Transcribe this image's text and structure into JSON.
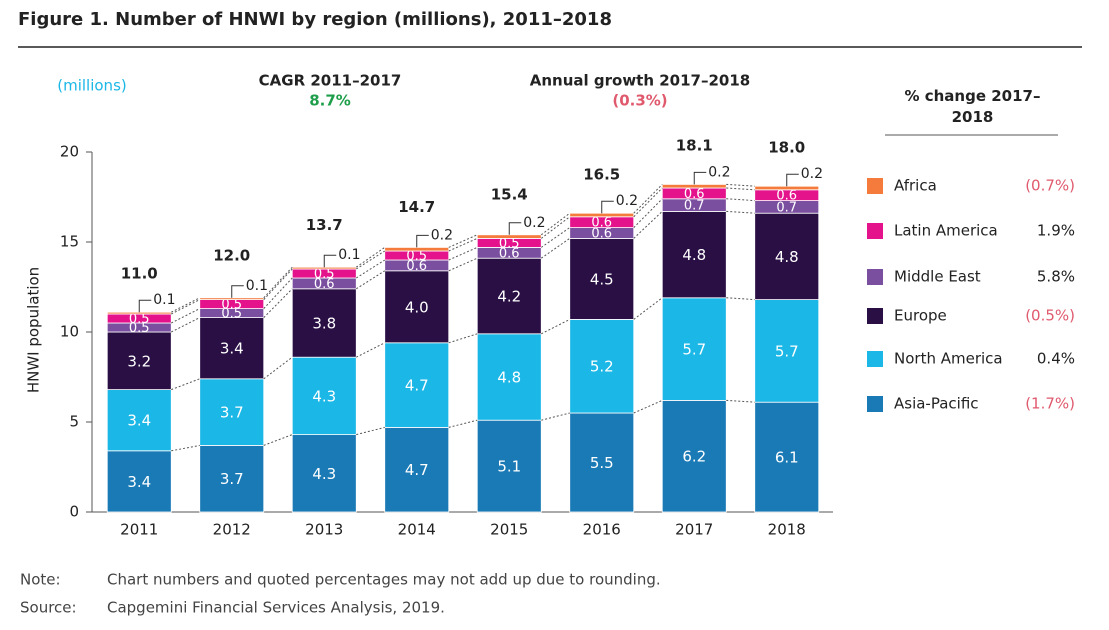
{
  "chart_data": {
    "type": "stacked_bar",
    "title": "Figure 1. Number of HNWI by region (millions), 2011–2018",
    "unit_note": "(millions)",
    "annotations": [
      {
        "label": "CAGR 2011–2017",
        "value": "8.7%",
        "color": "#1e9e4a"
      },
      {
        "label": "Annual growth 2017–2018",
        "value": "(0.3%)",
        "color": "#e05a6e"
      }
    ],
    "y_label": "HNWI population",
    "categories": [
      "2011",
      "2012",
      "2013",
      "2014",
      "2015",
      "2016",
      "2017",
      "2018"
    ],
    "series": [
      {
        "name": "Asia-Pacific",
        "color": "#1a7ab5",
        "values": [
          3.4,
          3.7,
          4.3,
          4.7,
          5.1,
          5.5,
          6.2,
          6.1
        ],
        "change": {
          "value": -1.7,
          "label": "(1.7%)"
        }
      },
      {
        "name": "North America",
        "color": "#1bb7e6",
        "values": [
          3.4,
          3.7,
          4.3,
          4.7,
          4.8,
          5.2,
          5.7,
          5.7
        ],
        "change": {
          "value": 0.4,
          "label": "0.4%"
        }
      },
      {
        "name": "Europe",
        "color": "#2a0f45",
        "values": [
          3.2,
          3.4,
          3.8,
          4.0,
          4.2,
          4.5,
          4.8,
          4.8
        ],
        "value_labels": [
          "3.2",
          "3.4",
          "3.8",
          "4.0",
          "4.2",
          "4.5",
          "4.8",
          "4.8"
        ],
        "change": {
          "value": -0.5,
          "label": "(0.5%)"
        }
      },
      {
        "name": "Middle East",
        "color": "#7b4fa0",
        "values": [
          0.5,
          0.5,
          0.6,
          0.6,
          0.6,
          0.6,
          0.7,
          0.7
        ],
        "change": {
          "value": 5.8,
          "label": "5.8%"
        }
      },
      {
        "name": "Latin America",
        "color": "#e4138b",
        "values": [
          0.5,
          0.5,
          0.5,
          0.5,
          0.5,
          0.6,
          0.6,
          0.6
        ],
        "change": {
          "value": 1.9,
          "label": "1.9%"
        }
      },
      {
        "name": "Africa",
        "color": "#f47b3c",
        "values": [
          0.1,
          0.1,
          0.1,
          0.2,
          0.2,
          0.2,
          0.2,
          0.2
        ],
        "change": {
          "value": -0.7,
          "label": "(0.7%)"
        }
      }
    ],
    "totals": [
      11.0,
      12.0,
      13.7,
      14.7,
      15.4,
      16.5,
      18.1,
      18.0
    ],
    "total_labels": [
      "11.0",
      "12.0",
      "13.7",
      "14.7",
      "15.4",
      "16.5",
      "18.1",
      "18.0"
    ],
    "legend_title": "% change 2017–2018",
    "ylim": [
      0,
      20
    ],
    "yticks": [
      0,
      5,
      10,
      15,
      20
    ],
    "notes": [
      {
        "label": "Note:",
        "text": "Chart numbers and quoted percentages may not add up due to rounding."
      },
      {
        "label": "Source:",
        "text": "Capgemini Financial Services Analysis, 2019."
      }
    ]
  }
}
